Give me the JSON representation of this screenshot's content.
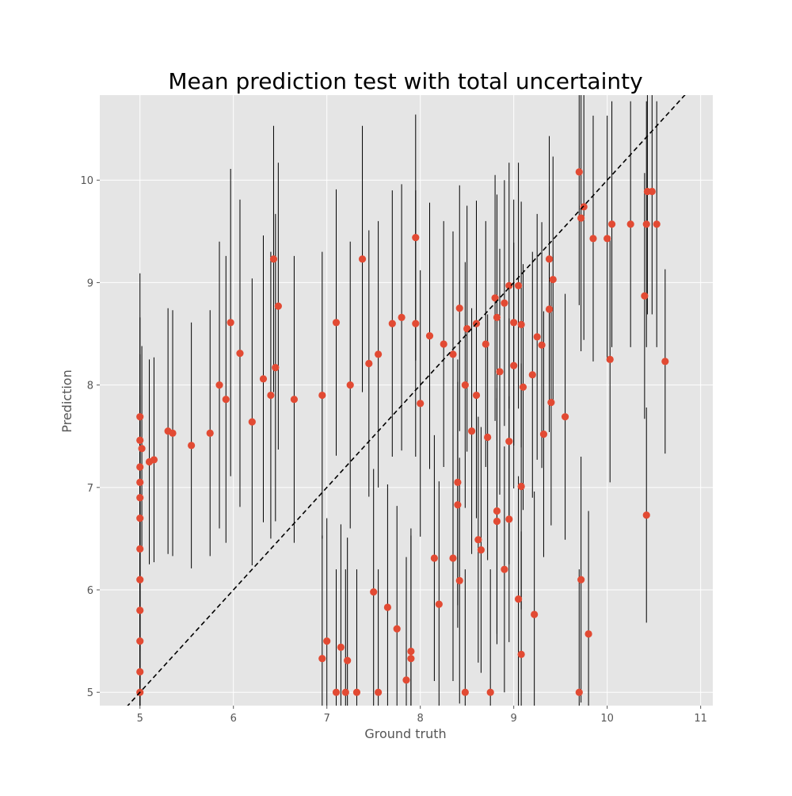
{
  "chart_data": {
    "type": "scatter",
    "title": "Mean prediction test with total uncertainty",
    "xlabel": "Ground truth",
    "ylabel": "Prediction",
    "xlim": [
      4.57,
      11.13
    ],
    "ylim": [
      4.87,
      10.83
    ],
    "xticks": [
      5,
      6,
      7,
      8,
      9,
      10,
      11
    ],
    "yticks": [
      5,
      6,
      7,
      8,
      9,
      10
    ],
    "grid": true,
    "reference_line": {
      "style": "dashed",
      "color": "#000000",
      "x": [
        4.57,
        11.13
      ],
      "y": [
        4.57,
        11.13
      ]
    },
    "colors": {
      "point": "#E24A33",
      "errorbar": "#000000",
      "background": "#E5E5E5",
      "grid": "#FFFFFF",
      "text": "#555555"
    },
    "series": [
      {
        "points": [
          {
            "x": 5.0,
            "y": 7.69,
            "err": 1.4
          },
          {
            "x": 5.0,
            "y": 7.46,
            "err": 1.2
          },
          {
            "x": 5.0,
            "y": 7.2,
            "err": 1.1
          },
          {
            "x": 5.0,
            "y": 7.05,
            "err": 1.0
          },
          {
            "x": 5.0,
            "y": 6.9,
            "err": 1.0
          },
          {
            "x": 5.0,
            "y": 6.7,
            "err": 1.0
          },
          {
            "x": 5.0,
            "y": 6.4,
            "err": 1.0
          },
          {
            "x": 5.0,
            "y": 6.1,
            "err": 1.0
          },
          {
            "x": 5.0,
            "y": 5.8,
            "err": 1.0
          },
          {
            "x": 5.0,
            "y": 5.5,
            "err": 1.0
          },
          {
            "x": 5.0,
            "y": 5.2,
            "err": 1.0
          },
          {
            "x": 5.0,
            "y": 5.0,
            "err": 1.0
          },
          {
            "x": 5.02,
            "y": 7.38,
            "err": 1.0
          },
          {
            "x": 5.1,
            "y": 7.25,
            "err": 1.0
          },
          {
            "x": 5.15,
            "y": 7.27,
            "err": 1.0
          },
          {
            "x": 5.3,
            "y": 7.55,
            "err": 1.2
          },
          {
            "x": 5.35,
            "y": 7.53,
            "err": 1.2
          },
          {
            "x": 5.55,
            "y": 7.41,
            "err": 1.2
          },
          {
            "x": 5.75,
            "y": 7.53,
            "err": 1.2
          },
          {
            "x": 5.85,
            "y": 8.0,
            "err": 1.4
          },
          {
            "x": 5.92,
            "y": 7.86,
            "err": 1.4
          },
          {
            "x": 5.97,
            "y": 8.61,
            "err": 1.5
          },
          {
            "x": 6.07,
            "y": 8.31,
            "err": 1.5
          },
          {
            "x": 6.2,
            "y": 7.64,
            "err": 1.4
          },
          {
            "x": 6.32,
            "y": 8.06,
            "err": 1.4
          },
          {
            "x": 6.4,
            "y": 7.9,
            "err": 1.4
          },
          {
            "x": 6.43,
            "y": 9.23,
            "err": 1.3
          },
          {
            "x": 6.45,
            "y": 8.17,
            "err": 1.5
          },
          {
            "x": 6.48,
            "y": 8.77,
            "err": 1.4
          },
          {
            "x": 6.65,
            "y": 7.86,
            "err": 1.4
          },
          {
            "x": 6.95,
            "y": 7.9,
            "err": 1.4
          },
          {
            "x": 7.1,
            "y": 8.61,
            "err": 1.3
          },
          {
            "x": 7.25,
            "y": 8.0,
            "err": 1.4
          },
          {
            "x": 7.38,
            "y": 9.23,
            "err": 1.3
          },
          {
            "x": 7.45,
            "y": 8.21,
            "err": 1.3
          },
          {
            "x": 7.55,
            "y": 8.3,
            "err": 1.3
          },
          {
            "x": 7.7,
            "y": 8.6,
            "err": 1.3
          },
          {
            "x": 7.8,
            "y": 8.66,
            "err": 1.3
          },
          {
            "x": 7.95,
            "y": 9.44,
            "err": 1.2
          },
          {
            "x": 7.95,
            "y": 8.6,
            "err": 1.3
          },
          {
            "x": 8.0,
            "y": 7.82,
            "err": 1.3
          },
          {
            "x": 8.1,
            "y": 8.48,
            "err": 1.3
          },
          {
            "x": 8.25,
            "y": 8.4,
            "err": 1.2
          },
          {
            "x": 8.35,
            "y": 8.3,
            "err": 1.2
          },
          {
            "x": 8.42,
            "y": 8.75,
            "err": 1.2
          },
          {
            "x": 8.5,
            "y": 8.55,
            "err": 1.2
          },
          {
            "x": 8.6,
            "y": 8.6,
            "err": 1.2
          },
          {
            "x": 8.7,
            "y": 8.4,
            "err": 1.2
          },
          {
            "x": 8.8,
            "y": 8.85,
            "err": 1.2
          },
          {
            "x": 8.82,
            "y": 8.66,
            "err": 1.2
          },
          {
            "x": 8.9,
            "y": 8.8,
            "err": 1.2
          },
          {
            "x": 8.95,
            "y": 8.97,
            "err": 1.2
          },
          {
            "x": 9.0,
            "y": 8.61,
            "err": 1.2
          },
          {
            "x": 9.05,
            "y": 8.97,
            "err": 1.2
          },
          {
            "x": 9.08,
            "y": 8.59,
            "err": 1.2
          },
          {
            "x": 9.2,
            "y": 8.1,
            "err": 1.2
          },
          {
            "x": 9.25,
            "y": 8.47,
            "err": 1.2
          },
          {
            "x": 9.3,
            "y": 8.39,
            "err": 1.2
          },
          {
            "x": 9.38,
            "y": 9.23,
            "err": 1.2
          },
          {
            "x": 9.38,
            "y": 8.74,
            "err": 1.2
          },
          {
            "x": 9.42,
            "y": 9.03,
            "err": 1.2
          },
          {
            "x": 9.4,
            "y": 7.83,
            "err": 1.2
          },
          {
            "x": 9.32,
            "y": 7.52,
            "err": 1.2
          },
          {
            "x": 9.55,
            "y": 7.69,
            "err": 1.2
          },
          {
            "x": 9.7,
            "y": 10.08,
            "err": 1.3
          },
          {
            "x": 9.72,
            "y": 9.63,
            "err": 1.3
          },
          {
            "x": 9.75,
            "y": 9.74,
            "err": 1.3
          },
          {
            "x": 9.85,
            "y": 9.43,
            "err": 1.2
          },
          {
            "x": 10.0,
            "y": 9.43,
            "err": 1.2
          },
          {
            "x": 10.05,
            "y": 9.57,
            "err": 1.2
          },
          {
            "x": 10.25,
            "y": 9.57,
            "err": 1.2
          },
          {
            "x": 10.03,
            "y": 8.25,
            "err": 1.2
          },
          {
            "x": 10.4,
            "y": 8.87,
            "err": 1.2
          },
          {
            "x": 10.43,
            "y": 9.89,
            "err": 1.2
          },
          {
            "x": 10.42,
            "y": 9.57,
            "err": 1.2
          },
          {
            "x": 10.48,
            "y": 9.89,
            "err": 1.2
          },
          {
            "x": 10.53,
            "y": 9.57,
            "err": 1.2
          },
          {
            "x": 10.62,
            "y": 8.23,
            "err": 0.9
          },
          {
            "x": 10.42,
            "y": 6.73,
            "err": 1.05
          },
          {
            "x": 9.72,
            "y": 6.1,
            "err": 1.2
          },
          {
            "x": 9.8,
            "y": 5.57,
            "err": 1.2
          },
          {
            "x": 9.7,
            "y": 5.0,
            "err": 1.2
          },
          {
            "x": 9.22,
            "y": 5.76,
            "err": 1.2
          },
          {
            "x": 9.08,
            "y": 5.37,
            "err": 1.2
          },
          {
            "x": 9.05,
            "y": 5.91,
            "err": 1.2
          },
          {
            "x": 8.9,
            "y": 6.2,
            "err": 1.2
          },
          {
            "x": 8.95,
            "y": 6.69,
            "err": 1.2
          },
          {
            "x": 8.82,
            "y": 6.77,
            "err": 1.2
          },
          {
            "x": 8.82,
            "y": 6.67,
            "err": 1.2
          },
          {
            "x": 8.65,
            "y": 6.39,
            "err": 1.2
          },
          {
            "x": 8.62,
            "y": 6.49,
            "err": 1.2
          },
          {
            "x": 8.75,
            "y": 5.0,
            "err": 1.2
          },
          {
            "x": 8.48,
            "y": 5.0,
            "err": 1.2
          },
          {
            "x": 8.42,
            "y": 6.09,
            "err": 1.2
          },
          {
            "x": 8.35,
            "y": 6.31,
            "err": 1.2
          },
          {
            "x": 8.15,
            "y": 6.31,
            "err": 1.2
          },
          {
            "x": 8.2,
            "y": 5.86,
            "err": 1.2
          },
          {
            "x": 9.08,
            "y": 7.01,
            "err": 1.2
          },
          {
            "x": 9.1,
            "y": 7.98,
            "err": 1.2
          },
          {
            "x": 8.85,
            "y": 8.13,
            "err": 1.2
          },
          {
            "x": 8.72,
            "y": 7.49,
            "err": 1.2
          },
          {
            "x": 8.55,
            "y": 7.55,
            "err": 1.2
          },
          {
            "x": 8.4,
            "y": 7.05,
            "err": 1.2
          },
          {
            "x": 8.4,
            "y": 6.83,
            "err": 1.2
          },
          {
            "x": 8.48,
            "y": 8.0,
            "err": 1.2
          },
          {
            "x": 8.6,
            "y": 7.9,
            "err": 1.2
          },
          {
            "x": 8.95,
            "y": 7.45,
            "err": 1.2
          },
          {
            "x": 9.0,
            "y": 8.19,
            "err": 1.2
          },
          {
            "x": 7.55,
            "y": 5.0,
            "err": 1.2
          },
          {
            "x": 7.32,
            "y": 5.0,
            "err": 1.2
          },
          {
            "x": 7.2,
            "y": 5.0,
            "err": 1.2
          },
          {
            "x": 7.1,
            "y": 5.0,
            "err": 1.2
          },
          {
            "x": 7.85,
            "y": 5.12,
            "err": 1.2
          },
          {
            "x": 7.9,
            "y": 5.33,
            "err": 1.2
          },
          {
            "x": 7.9,
            "y": 5.4,
            "err": 1.2
          },
          {
            "x": 7.75,
            "y": 5.62,
            "err": 1.2
          },
          {
            "x": 7.22,
            "y": 5.31,
            "err": 1.2
          },
          {
            "x": 7.15,
            "y": 5.44,
            "err": 1.2
          },
          {
            "x": 7.5,
            "y": 5.98,
            "err": 1.2
          },
          {
            "x": 7.65,
            "y": 5.83,
            "err": 1.2
          },
          {
            "x": 7.0,
            "y": 5.5,
            "err": 1.2
          },
          {
            "x": 6.95,
            "y": 5.33,
            "err": 1.2
          }
        ]
      }
    ]
  }
}
